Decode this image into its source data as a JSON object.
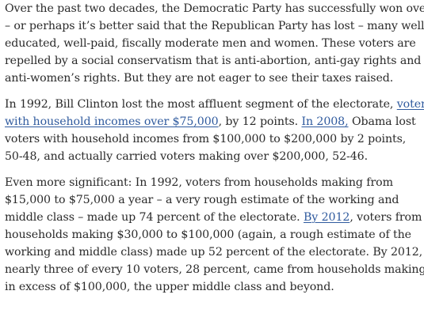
{
  "article": {
    "p1": {
      "l1": "Over the past two decades, the Democratic Party has successfully won over",
      "l2": "– or perhaps it’s better said that the Republican Party has lost – many well-",
      "l3": "educated, well-paid, fiscally moderate men and women. These voters are",
      "l4": "repelled by a social conservatism that is anti-abortion, anti-gay rights and",
      "l5": "anti-women’s rights. But they are not eager to see their taxes raised."
    },
    "p2": {
      "l1_a": "In 1992, Bill Clinton lost the most affluent segment of the electorate, ",
      "l1_link": "voters",
      "l2_link": "with household incomes over $75,000",
      "l2_b": ", by 12 points. ",
      "l2_link2": "In 2008,",
      "l2_c": " Obama lost",
      "l3": "voters with household incomes from $100,000 to $200,000 by 2 points,",
      "l4": "50-48, and actually carried voters making over $200,000, 52-46."
    },
    "p3": {
      "l1": "Even more significant: In 1992, voters from households making from",
      "l2": "$15,000 to $75,000 a year – a very rough estimate of the working and",
      "l3_a": "middle class – made up 74 percent of the electorate. ",
      "l3_link": "By 2012",
      "l3_b": ", voters from",
      "l4": "households making $30,000 to $100,000 (again, a rough estimate of the",
      "l5": "working and middle class) made up 52 percent of the electorate. By 2012,",
      "l6": "nearly three of every 10 voters, 28 percent, came from households making",
      "l7": "in excess of $100,000, the upper middle class and beyond."
    }
  },
  "colors": {
    "text": "#2a2a2a",
    "link": "#2f5a9e",
    "background": "#ffffff"
  }
}
